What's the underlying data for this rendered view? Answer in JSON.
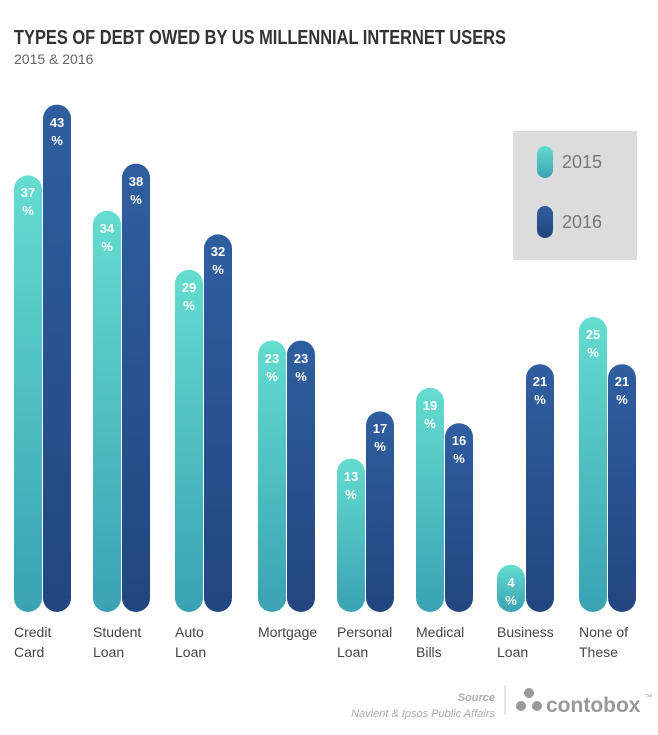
{
  "chart_data": {
    "type": "bar",
    "title": "TYPES OF DEBT OWED BY US MILLENNIAL INTERNET USERS",
    "subtitle": "2015 & 2016",
    "categories": [
      "Credit\nCard",
      "Student\nLoan",
      "Auto\nLoan",
      "Mortgage",
      "Personal\nLoan",
      "Medical\nBills",
      "Business\nLoan",
      "None of\nThese"
    ],
    "series": [
      {
        "name": "2015",
        "color": "#4cc3c4",
        "values": [
          37,
          34,
          29,
          23,
          13,
          19,
          4,
          25
        ],
        "value_labels": [
          "37\n%",
          "34\n%",
          "29\n%",
          "23\n%",
          "13\n%",
          "19\n%",
          "4\n%",
          "25\n%"
        ]
      },
      {
        "name": "2016",
        "color": "#2a5595",
        "values": [
          43,
          38,
          32,
          23,
          17,
          16,
          21,
          21
        ],
        "value_labels": [
          "43\n%",
          "38\n%",
          "32\n%",
          "23\n%",
          "17\n%",
          "16\n%",
          "21\n%",
          "21\n%"
        ]
      }
    ],
    "legend": "top-right",
    "source_label": "Source",
    "source": "Navient & Ipsos Public Affairs",
    "logo": "contobox"
  }
}
